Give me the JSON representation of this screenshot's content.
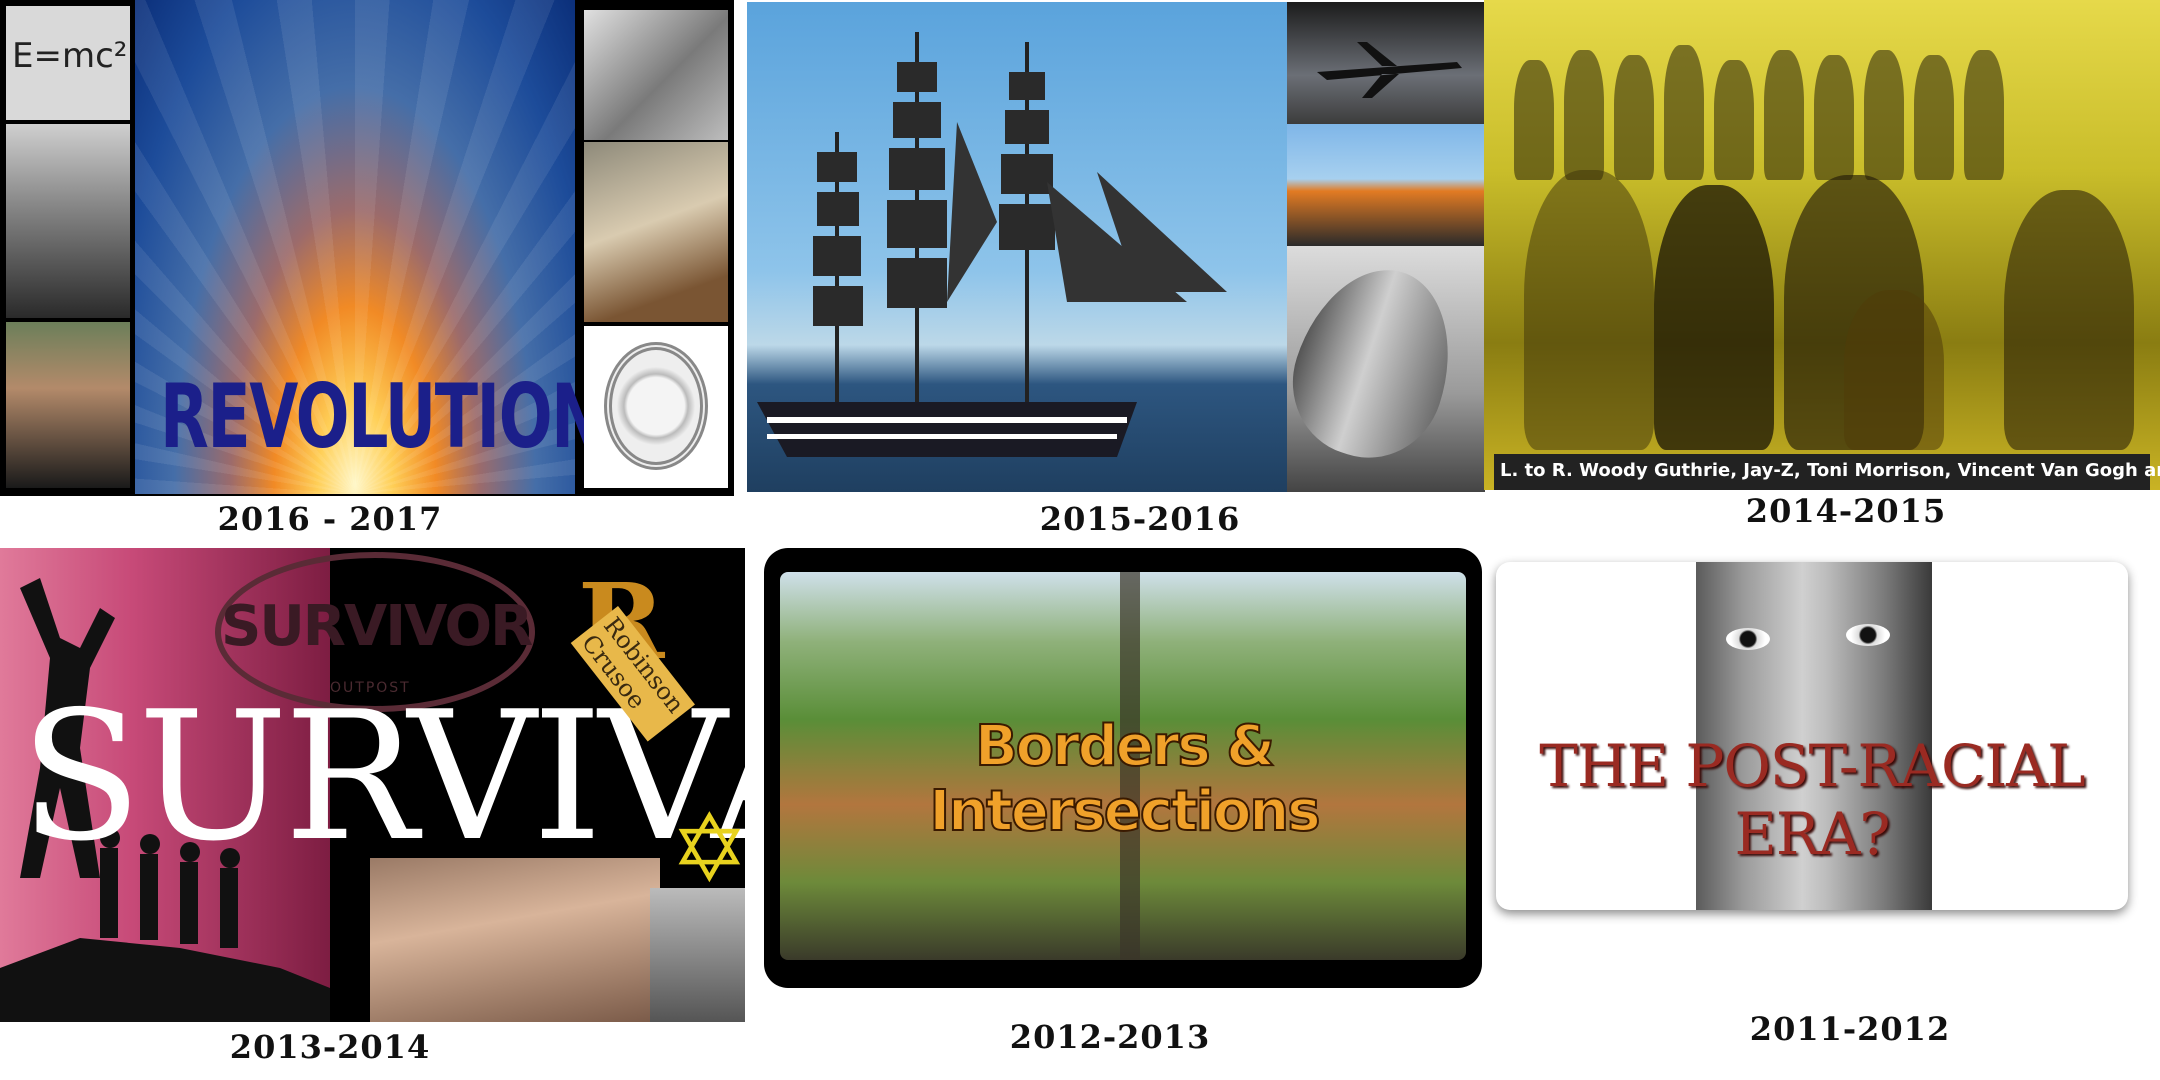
{
  "panels": {
    "revolution": {
      "equation": "E=mc²",
      "title": "REVOLUTION",
      "caption": "2016 - 2017"
    },
    "voyages": {
      "caption": "2015-2016"
    },
    "artists": {
      "credit": "L. to R. Woody Guthrie, Jay-Z, Toni Morrison, Vincent Van Gogh and Norah Jones",
      "caption": "2014-2015"
    },
    "survival": {
      "title": "SURVIVAL",
      "logo_text": "SURVIVOR",
      "logo_sub": "OUTPOST",
      "book_initial": "R",
      "book_title": "Robinson Crusoe",
      "caption": "2013-2014"
    },
    "borders": {
      "title": "Borders & Intersections",
      "caption": "2012-2013"
    },
    "post_racial": {
      "title": "THE POST-RACIAL ERA?",
      "caption": "2011-2012"
    }
  }
}
